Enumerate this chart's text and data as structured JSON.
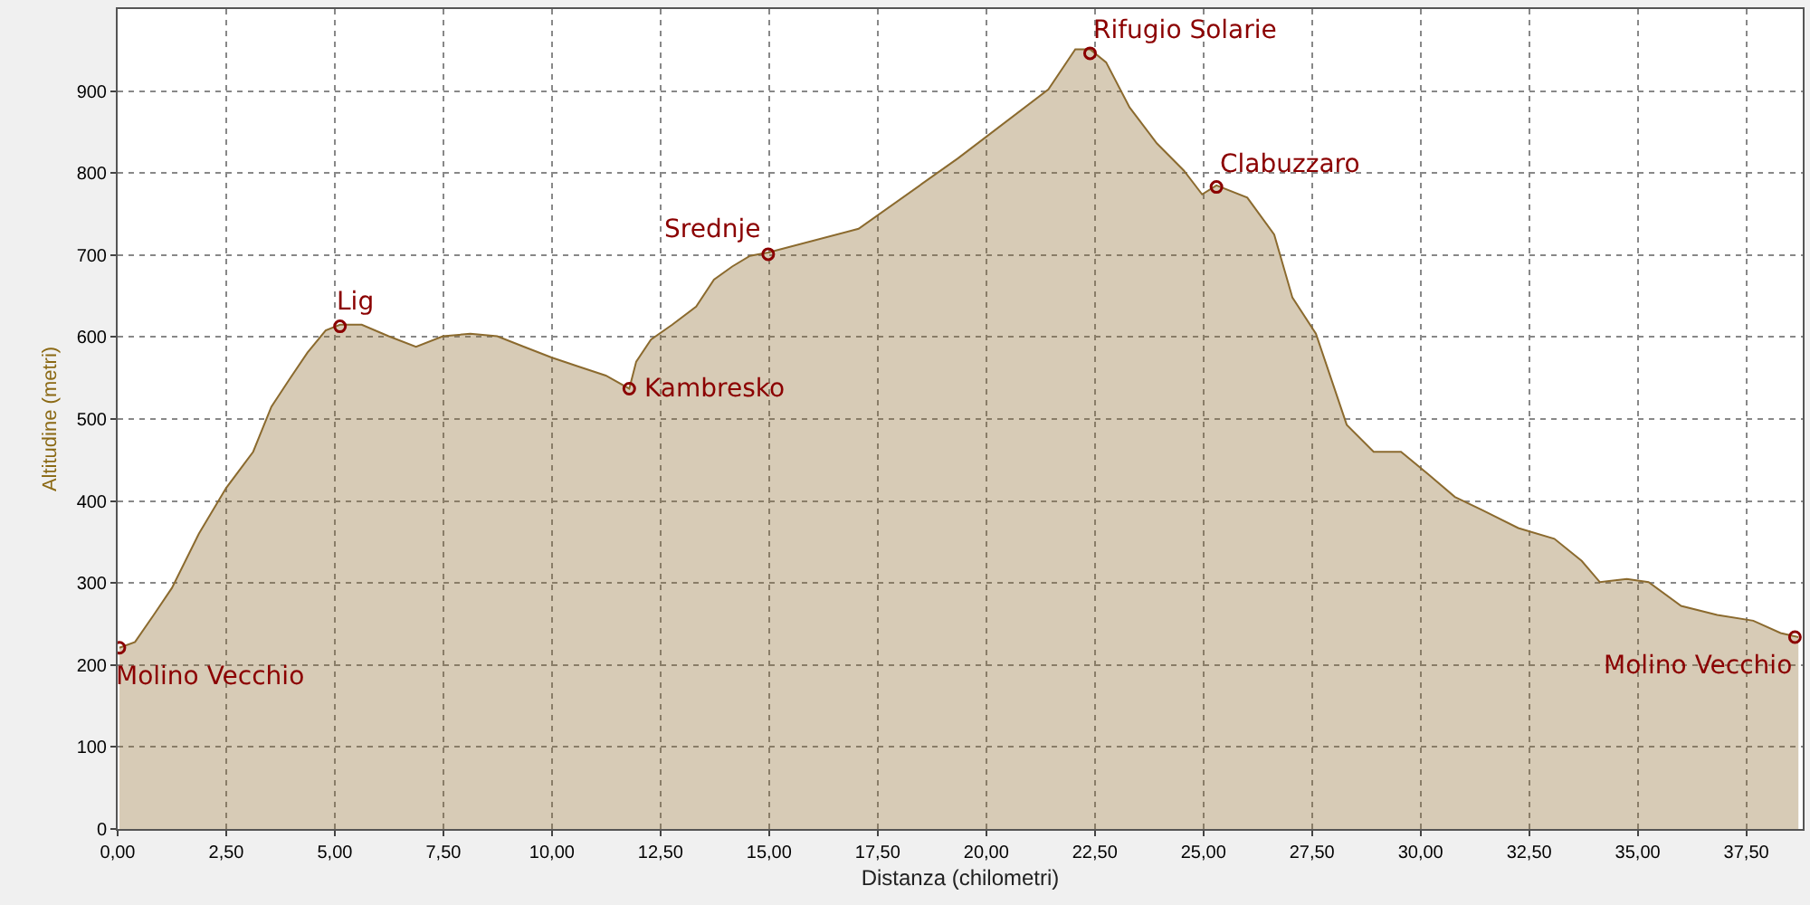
{
  "chart_data": {
    "type": "area",
    "xlabel": "Distanza (chilometri)",
    "ylabel": "Altitudine (metri)",
    "x": [
      0.04,
      0.4,
      0.83,
      1.25,
      1.87,
      2.5,
      3.12,
      3.54,
      3.95,
      4.37,
      4.79,
      5.12,
      5.62,
      6.24,
      6.87,
      7.49,
      8.12,
      8.74,
      9.36,
      9.99,
      10.61,
      11.24,
      11.78,
      11.94,
      12.28,
      12.77,
      13.32,
      13.73,
      14.15,
      14.56,
      14.98,
      17.06,
      19.35,
      21.43,
      22.05,
      22.39,
      22.76,
      23.3,
      23.93,
      24.55,
      24.97,
      25.3,
      26.01,
      26.63,
      27.05,
      27.59,
      28.3,
      28.92,
      29.55,
      30.17,
      30.79,
      31.42,
      32.25,
      33.08,
      33.71,
      34.13,
      34.75,
      35.25,
      36.0,
      36.83,
      37.66,
      38.29,
      38.7
    ],
    "series": [
      {
        "color": "#8b6a2e",
        "values": [
          221,
          228,
          261,
          294,
          360,
          416,
          460,
          515,
          548,
          581,
          608,
          615,
          615,
          601,
          588,
          601,
          604,
          601,
          588,
          575,
          564,
          553,
          537,
          570,
          597,
          615,
          637,
          670,
          686,
          699,
          703,
          732,
          818,
          902,
          951,
          951,
          935,
          880,
          836,
          803,
          774,
          785,
          770,
          725,
          648,
          604,
          493,
          460,
          460,
          433,
          405,
          389,
          367,
          354,
          327,
          301,
          305,
          301,
          272,
          261,
          254,
          239,
          234
        ]
      }
    ],
    "xlim": [
      0,
      38.8
    ],
    "ylim": [
      0,
      1000
    ],
    "xticks": [
      {
        "value": 0,
        "label": "0,00"
      },
      {
        "value": 2.5,
        "label": "2,50"
      },
      {
        "value": 5,
        "label": "5,00"
      },
      {
        "value": 7.5,
        "label": "7,50"
      },
      {
        "value": 10,
        "label": "10,00"
      },
      {
        "value": 12.5,
        "label": "12,50"
      },
      {
        "value": 15,
        "label": "15,00"
      },
      {
        "value": 17.5,
        "label": "17,50"
      },
      {
        "value": 20,
        "label": "20,00"
      },
      {
        "value": 22.5,
        "label": "22,50"
      },
      {
        "value": 25,
        "label": "25,00"
      },
      {
        "value": 27.5,
        "label": "27,50"
      },
      {
        "value": 30,
        "label": "30,00"
      },
      {
        "value": 32.5,
        "label": "32,50"
      },
      {
        "value": 35,
        "label": "35,00"
      },
      {
        "value": 37.5,
        "label": "37,50"
      }
    ],
    "yticks": [
      0,
      100,
      200,
      300,
      400,
      500,
      600,
      700,
      800,
      900
    ],
    "grid": true,
    "annotations": [
      {
        "text": "Molino Vecchio",
        "x": 0.04,
        "y": 221
      },
      {
        "text": "Lig",
        "x": 5.12,
        "y": 613
      },
      {
        "text": "Kambresko",
        "x": 11.78,
        "y": 537
      },
      {
        "text": "Srednje",
        "x": 14.98,
        "y": 701
      },
      {
        "text": "Rifugio Solarie",
        "x": 22.39,
        "y": 946
      },
      {
        "text": "Clabuzzaro",
        "x": 25.3,
        "y": 783
      },
      {
        "text": "Molino Vecchio",
        "x": 38.62,
        "y": 234
      }
    ]
  }
}
